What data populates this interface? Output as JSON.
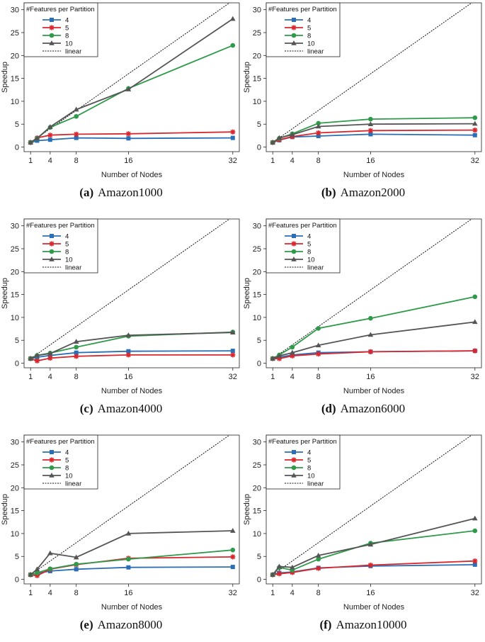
{
  "figure": {
    "colors": {
      "4": "#2a6fb5",
      "5": "#d9272e",
      "8": "#2e9a4a",
      "10": "#555555",
      "linear": "#111111"
    },
    "legend_title": "#Features per Partition",
    "series_names": [
      "4",
      "5",
      "8",
      "10",
      "linear"
    ],
    "xlabel": "Number of Nodes",
    "ylabel": "Speedup"
  },
  "chart_data": [
    {
      "type": "line",
      "panel_label": "(a)",
      "title": "Amazon1000",
      "xlabel": "Number of Nodes",
      "ylabel": "Speedup",
      "x": [
        1,
        2,
        4,
        8,
        16,
        32
      ],
      "xticks": [
        1,
        4,
        8,
        16,
        32
      ],
      "yticks": [
        0,
        5,
        10,
        15,
        20,
        25,
        30
      ],
      "xlim": [
        0,
        33
      ],
      "ylim": [
        -1,
        31.5
      ],
      "series": [
        {
          "name": "4",
          "marker": "square",
          "values": [
            1.0,
            1.4,
            1.6,
            2.0,
            1.9,
            2.0
          ]
        },
        {
          "name": "5",
          "marker": "star",
          "values": [
            1.0,
            2.0,
            2.6,
            2.8,
            2.9,
            3.3
          ]
        },
        {
          "name": "8",
          "marker": "circle",
          "values": [
            1.0,
            1.9,
            4.3,
            6.7,
            12.8,
            22.2
          ]
        },
        {
          "name": "10",
          "marker": "triangle",
          "values": [
            1.0,
            1.9,
            4.4,
            8.2,
            12.6,
            28.0
          ]
        }
      ]
    },
    {
      "type": "line",
      "panel_label": "(b)",
      "title": "Amazon2000",
      "xlabel": "Number of Nodes",
      "ylabel": "Speedup",
      "x": [
        1,
        2,
        4,
        8,
        16,
        32
      ],
      "xticks": [
        1,
        4,
        8,
        16,
        32
      ],
      "yticks": [
        0,
        5,
        10,
        15,
        20,
        25,
        30
      ],
      "xlim": [
        0,
        33
      ],
      "ylim": [
        -1,
        31.5
      ],
      "series": [
        {
          "name": "4",
          "marker": "square",
          "values": [
            1.0,
            1.5,
            2.2,
            2.4,
            2.8,
            2.6
          ]
        },
        {
          "name": "5",
          "marker": "star",
          "values": [
            1.0,
            1.6,
            2.3,
            3.1,
            3.6,
            3.7
          ]
        },
        {
          "name": "8",
          "marker": "circle",
          "values": [
            1.0,
            1.9,
            2.9,
            5.2,
            6.1,
            6.4
          ]
        },
        {
          "name": "10",
          "marker": "triangle",
          "values": [
            1.0,
            2.0,
            2.7,
            4.5,
            5.0,
            5.1
          ]
        }
      ]
    },
    {
      "type": "line",
      "panel_label": "(c)",
      "title": "Amazon4000",
      "xlabel": "Number of Nodes",
      "ylabel": "Speedup",
      "x": [
        1,
        2,
        4,
        8,
        16,
        32
      ],
      "xticks": [
        1,
        4,
        8,
        16,
        32
      ],
      "yticks": [
        0,
        5,
        10,
        15,
        20,
        25,
        30
      ],
      "xlim": [
        0,
        33
      ],
      "ylim": [
        -1,
        31.5
      ],
      "series": [
        {
          "name": "4",
          "marker": "square",
          "values": [
            1.0,
            1.3,
            1.7,
            2.3,
            2.6,
            2.7
          ]
        },
        {
          "name": "5",
          "marker": "star",
          "values": [
            1.0,
            0.5,
            1.1,
            1.5,
            1.8,
            1.8
          ]
        },
        {
          "name": "8",
          "marker": "circle",
          "values": [
            1.0,
            1.7,
            2.2,
            3.5,
            5.9,
            6.8
          ]
        },
        {
          "name": "10",
          "marker": "triangle",
          "values": [
            1.0,
            1.7,
            2.1,
            4.7,
            6.1,
            6.7
          ]
        }
      ]
    },
    {
      "type": "line",
      "panel_label": "(d)",
      "title": "Amazon6000",
      "xlabel": "Number of Nodes",
      "ylabel": "Speedup",
      "x": [
        1,
        2,
        4,
        8,
        16,
        32
      ],
      "xticks": [
        1,
        4,
        8,
        16,
        32
      ],
      "yticks": [
        0,
        5,
        10,
        15,
        20,
        25,
        30
      ],
      "xlim": [
        0,
        33
      ],
      "ylim": [
        -1,
        31.5
      ],
      "series": [
        {
          "name": "4",
          "marker": "square",
          "values": [
            1.0,
            1.3,
            1.8,
            2.3,
            2.5,
            2.7
          ]
        },
        {
          "name": "5",
          "marker": "star",
          "values": [
            1.0,
            1.0,
            1.6,
            2.0,
            2.5,
            2.7
          ]
        },
        {
          "name": "8",
          "marker": "circle",
          "values": [
            1.0,
            1.8,
            3.5,
            7.6,
            9.8,
            14.5
          ]
        },
        {
          "name": "10",
          "marker": "triangle",
          "values": [
            1.0,
            1.6,
            2.3,
            3.9,
            6.2,
            9.0
          ]
        }
      ]
    },
    {
      "type": "line",
      "panel_label": "(e)",
      "title": "Amazon8000",
      "xlabel": "Number of Nodes",
      "ylabel": "Speedup",
      "x": [
        1,
        2,
        4,
        8,
        16,
        32
      ],
      "xticks": [
        1,
        4,
        8,
        16,
        32
      ],
      "yticks": [
        0,
        5,
        10,
        15,
        20,
        25,
        30
      ],
      "xlim": [
        0,
        33
      ],
      "ylim": [
        -1,
        31.5
      ],
      "series": [
        {
          "name": "4",
          "marker": "square",
          "values": [
            1.0,
            1.3,
            1.8,
            2.2,
            2.6,
            2.7
          ]
        },
        {
          "name": "5",
          "marker": "star",
          "values": [
            1.0,
            0.8,
            2.2,
            3.2,
            4.6,
            4.9
          ]
        },
        {
          "name": "8",
          "marker": "circle",
          "values": [
            1.0,
            1.4,
            2.3,
            3.3,
            4.4,
            6.4
          ]
        },
        {
          "name": "10",
          "marker": "triangle",
          "values": [
            1.0,
            2.2,
            5.7,
            4.8,
            10.0,
            10.6
          ]
        }
      ]
    },
    {
      "type": "line",
      "panel_label": "(f)",
      "title": "Amazon10000",
      "xlabel": "Number of Nodes",
      "ylabel": "Speedup",
      "x": [
        1,
        2,
        4,
        8,
        16,
        32
      ],
      "xticks": [
        1,
        4,
        8,
        16,
        32
      ],
      "yticks": [
        0,
        5,
        10,
        15,
        20,
        25,
        30
      ],
      "xlim": [
        0,
        33
      ],
      "ylim": [
        -1,
        31.5
      ],
      "series": [
        {
          "name": "4",
          "marker": "square",
          "values": [
            1.0,
            1.4,
            1.6,
            2.5,
            2.9,
            3.2
          ]
        },
        {
          "name": "5",
          "marker": "star",
          "values": [
            1.0,
            1.2,
            1.5,
            2.4,
            3.1,
            4.0
          ]
        },
        {
          "name": "8",
          "marker": "circle",
          "values": [
            1.0,
            2.6,
            2.0,
            4.4,
            7.9,
            10.6
          ]
        },
        {
          "name": "10",
          "marker": "triangle",
          "values": [
            1.0,
            2.8,
            2.6,
            5.2,
            7.6,
            13.3
          ]
        }
      ]
    }
  ]
}
